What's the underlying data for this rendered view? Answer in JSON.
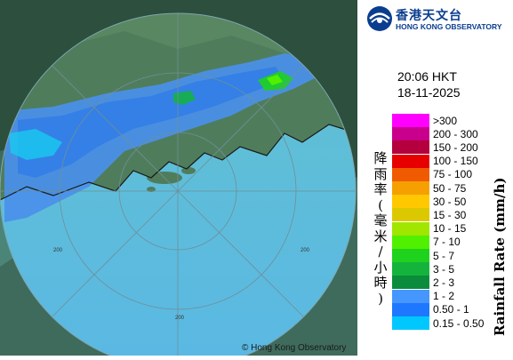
{
  "header": {
    "org_name_cn": "香港天文台",
    "org_name_en": "HONG KONG OBSERVATORY"
  },
  "timestamp": {
    "time": "20:06 HKT",
    "date": "18-11-2025"
  },
  "map": {
    "range_labels": [
      "200",
      "200",
      "200"
    ],
    "copyright": "© Hong Kong Observatory"
  },
  "legend": {
    "title_cn": "降雨率(毫米/小時)",
    "title_en": "Rainfall Rate (mm/h)",
    "items": [
      {
        "label": ">300",
        "color": "#ff00ff"
      },
      {
        "label": "200 - 300",
        "color": "#c8008c"
      },
      {
        "label": "150 - 200",
        "color": "#b4003c"
      },
      {
        "label": "100 - 150",
        "color": "#e60000"
      },
      {
        "label": "75 - 100",
        "color": "#f05a00"
      },
      {
        "label": "50 - 75",
        "color": "#f5a000"
      },
      {
        "label": "30 - 50",
        "color": "#ffc800"
      },
      {
        "label": "15 - 30",
        "color": "#dcc800"
      },
      {
        "label": "10 - 15",
        "color": "#a0e600"
      },
      {
        "label": "7 - 10",
        "color": "#50f000"
      },
      {
        "label": "5 - 7",
        "color": "#1ed21e"
      },
      {
        "label": "3 - 5",
        "color": "#14b43c"
      },
      {
        "label": "2 - 3",
        "color": "#0a8c3c"
      },
      {
        "label": "1 - 2",
        "color": "#4696ff"
      },
      {
        "label": "0.50 - 1",
        "color": "#1e78ff"
      },
      {
        "label": "0.15 - 0.50",
        "color": "#00c8ff"
      }
    ]
  }
}
